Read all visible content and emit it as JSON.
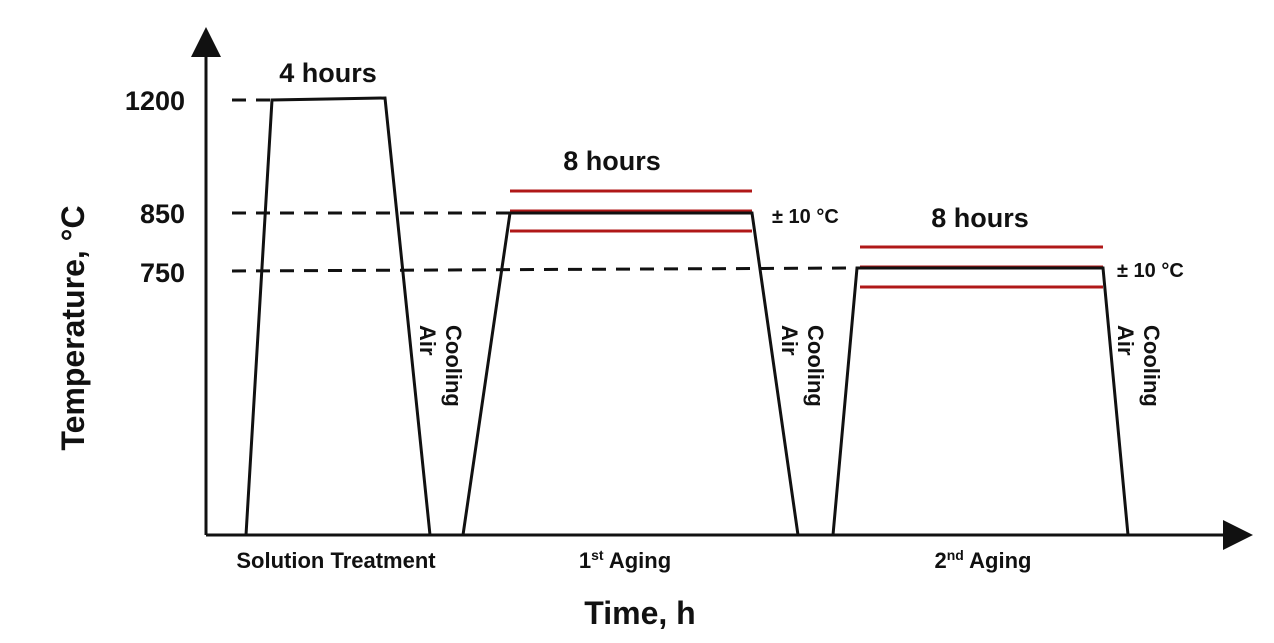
{
  "y_axis": {
    "title": "Temperature, °C",
    "ticks": [
      "1200",
      "850",
      "750"
    ]
  },
  "x_axis": {
    "title": "Time, h"
  },
  "stages": [
    {
      "label": {
        "base": "Solution Treatment"
      },
      "hold": "4 hours",
      "cooling": [
        "Air",
        "Cooling"
      ]
    },
    {
      "label": {
        "base": "1",
        "sup": "st",
        "rest": " Aging"
      },
      "hold": "8 hours",
      "tolerance": "± 10 °C",
      "cooling": [
        "Air",
        "Cooling"
      ]
    },
    {
      "label": {
        "base": "2",
        "sup": "nd",
        "rest": " Aging"
      },
      "hold": "8 hours",
      "tolerance": "± 10 °C",
      "cooling": [
        "Air",
        "Cooling"
      ]
    }
  ]
}
